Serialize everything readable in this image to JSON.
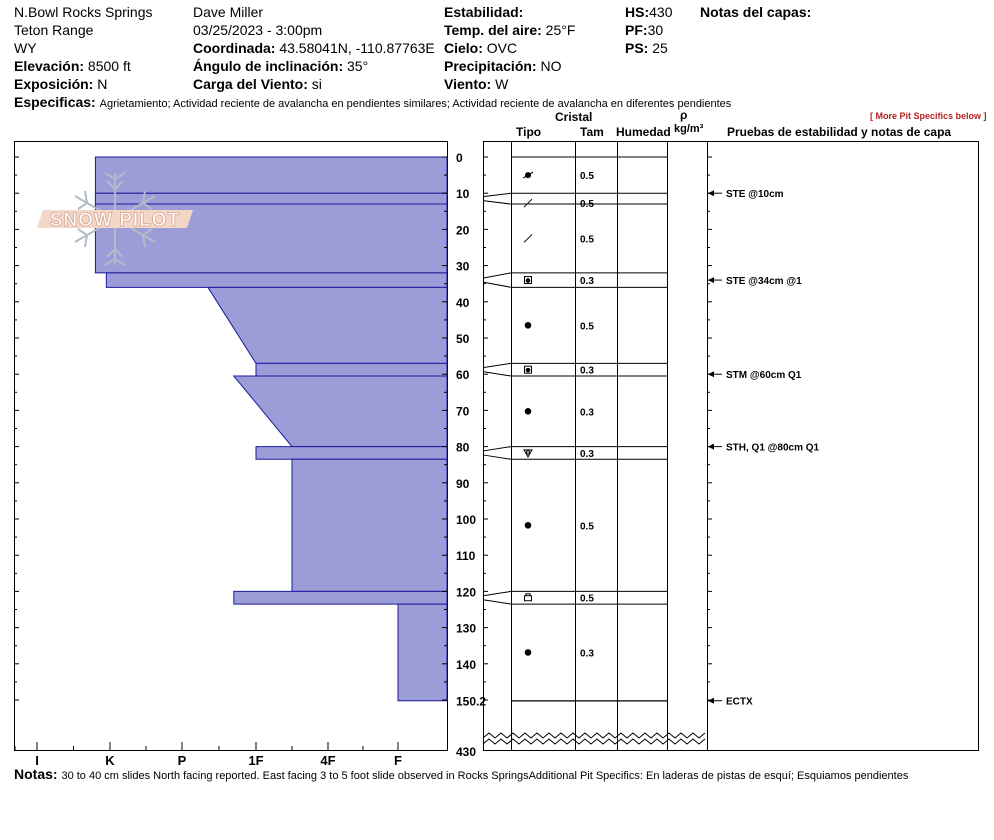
{
  "header": {
    "location": "N.Bowl Rocks Springs",
    "range": "Teton Range",
    "state": "WY",
    "elevation_label": "Elevación:",
    "elevation_value": "8500 ft",
    "aspect_label": "Exposición:",
    "aspect_value": "N",
    "observer": "Dave Miller",
    "datetime": "03/25/2023 - 3:00pm",
    "coord_label": "Coordinada:",
    "coord_value": "43.58041N, -110.87763E",
    "slope_label": "Ángulo de inclinación:",
    "slope_value": "35°",
    "wind_load_label": "Carga del Viento:",
    "wind_load_value": "si",
    "stability_label": "Estabilidad:",
    "air_temp_label": "Temp. del aire:",
    "air_temp_value": "25°F",
    "sky_label": "Cielo:",
    "sky_value": "OVC",
    "precip_label": "Precipitación:",
    "precip_value": "NO",
    "wind_label": "Viento:",
    "wind_value": "W",
    "hs_label": "HS:",
    "hs_value": "430",
    "pf_label": "PF:",
    "pf_value": "30",
    "ps_label": "PS:",
    "ps_value": "25",
    "layer_notes_label": "Notas del capas:",
    "specifics_label": "Especificas:",
    "specifics_text": "Agrietamiento; Actividad reciente de avalancha en pendientes similares; Actividad reciente de avalancha en diferentes pendientes"
  },
  "columns": {
    "crystal": "Cristal",
    "type": "Tipo",
    "size": "Tam",
    "moisture": "Humedad",
    "rho": "ρ",
    "density_unit": "kg/m³",
    "tests": "Pruebas de estabilidad y notas de capa",
    "more_link": "[ More Pit Specifics below ]"
  },
  "logo": {
    "text": "SNOW PILOT"
  },
  "notes": {
    "label": "Notas:",
    "text": "30 to 40 cm slides North facing reported. East facing 3 to 5 foot slide observed in Rocks SpringsAdditional Pit Specifics: En laderas de pistas de esquí; Esquiamos pendientes"
  },
  "chart_data": {
    "type": "snow-profile",
    "hardness_scale": [
      "I",
      "K",
      "P",
      "1F",
      "4F",
      "F"
    ],
    "depth_ticks": [
      "0",
      "10",
      "20",
      "30",
      "40",
      "50",
      "60",
      "70",
      "80",
      "90",
      "100",
      "110",
      "120",
      "130",
      "140",
      "150.2"
    ],
    "depth_bottom_label": "430",
    "depth_range_cm": [
      0,
      150.2
    ],
    "total_depth_cm": 430,
    "layers": [
      {
        "top": 0,
        "bottom": 10,
        "hardness_top": 0.8,
        "hardness_bottom": 0.8,
        "grain": "precipitation-particles-icon",
        "size": "0.5"
      },
      {
        "top": 10,
        "bottom": 13,
        "hardness_top": 0.8,
        "hardness_bottom": 0.8,
        "grain": "decomposing-fragments-icon",
        "size": "0.5"
      },
      {
        "top": 13,
        "bottom": 32,
        "hardness_top": 0.8,
        "hardness_bottom": 0.8,
        "grain": "decomposing-fragments-icon",
        "size": "0.5"
      },
      {
        "top": 32,
        "bottom": 36,
        "hardness_top": 0.95,
        "hardness_bottom": 0.95,
        "grain": "mixed-forms-icon",
        "size": "0.3"
      },
      {
        "top": 36,
        "bottom": 57,
        "hardness_top": 2.35,
        "hardness_bottom": 3.0,
        "grain": "rounded-grains-icon",
        "size": "0.5"
      },
      {
        "top": 57,
        "bottom": 60.5,
        "hardness_top": 3.0,
        "hardness_bottom": 3.0,
        "grain": "mixed-forms-icon",
        "size": "0.3"
      },
      {
        "top": 60.5,
        "bottom": 80,
        "hardness_top": 2.7,
        "hardness_bottom": 3.5,
        "grain": "rounded-grains-icon",
        "size": "0.3"
      },
      {
        "top": 80,
        "bottom": 83.5,
        "hardness_top": 3.0,
        "hardness_bottom": 3.0,
        "grain": "surface-hoar-icon",
        "size": "0.3"
      },
      {
        "top": 83.5,
        "bottom": 120,
        "hardness_top": 3.5,
        "hardness_bottom": 3.5,
        "grain": "rounded-grains-icon",
        "size": "0.5"
      },
      {
        "top": 120,
        "bottom": 123.5,
        "hardness_top": 2.7,
        "hardness_bottom": 2.7,
        "grain": "faceted-crystals-icon",
        "size": "0.5"
      },
      {
        "top": 123.5,
        "bottom": 150.2,
        "hardness_top": 5.0,
        "hardness_bottom": 5.8,
        "grain": "rounded-grains-icon",
        "size": "0.3"
      }
    ],
    "tests": [
      {
        "depth": 10,
        "label": "STE @10cm"
      },
      {
        "depth": 34,
        "label": "STE @34cm  @1"
      },
      {
        "depth": 60,
        "label": "STM @60cm  Q1"
      },
      {
        "depth": 80,
        "label": "STH, Q1 @80cm  Q1"
      },
      {
        "depth": 150.2,
        "label": "ECTX"
      }
    ]
  }
}
